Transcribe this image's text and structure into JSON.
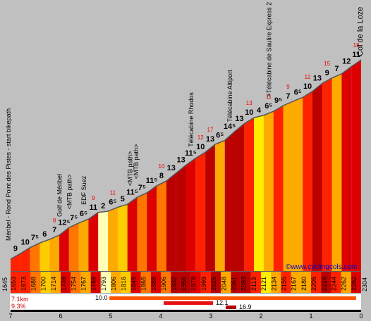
{
  "chart_data": {
    "type": "area",
    "title": "Col de la Loze",
    "credit": "©www.cyclingcols.com",
    "x_unit": "km remaining",
    "x_ticks": [
      "7",
      "6",
      "5",
      "4",
      "3",
      "2",
      "1",
      "0"
    ],
    "start_altitude": "1645",
    "end_altitude": "2304",
    "altitudes": [
      "1653",
      "1673",
      "1688",
      "1700",
      "1714",
      "1739",
      "1754",
      "1767",
      "1789",
      "1793",
      "1806",
      "1816",
      "1849",
      "1865",
      "1888",
      "1906",
      "1932",
      "1956",
      "1979",
      "1999",
      "2025",
      "2048",
      "2061",
      "2093",
      "2113",
      "2121",
      "2134",
      "2155",
      "2167",
      "2180",
      "2206",
      "2226",
      "2244",
      "2262",
      "2282"
    ],
    "segments": [
      {
        "km": 0.2,
        "gradient": 9,
        "label": "9"
      },
      {
        "km": 0.2,
        "gradient": 10,
        "label": "10"
      },
      {
        "km": 0.2,
        "gradient": 7.5,
        "label": "7⁵"
      },
      {
        "km": 0.2,
        "gradient": 6,
        "label": "6"
      },
      {
        "km": 0.2,
        "gradient": 7,
        "label": "7",
        "max": "8"
      },
      {
        "km": 0.2,
        "gradient": 12.5,
        "label": "12⁵"
      },
      {
        "km": 0.2,
        "gradient": 7.5,
        "label": "7⁵"
      },
      {
        "km": 0.2,
        "gradient": 6.5,
        "label": "6⁵"
      },
      {
        "km": 0.2,
        "gradient": 11,
        "label": "11",
        "max": "9"
      },
      {
        "km": 0.2,
        "gradient": 2,
        "label": "2"
      },
      {
        "km": 0.2,
        "gradient": 6.5,
        "label": "6⁵",
        "max": "11"
      },
      {
        "km": 0.2,
        "gradient": 5,
        "label": "5"
      },
      {
        "km": 0.2,
        "gradient": 11.5,
        "label": "11⁵"
      },
      {
        "km": 0.2,
        "gradient": 7.5,
        "label": "7⁵"
      },
      {
        "km": 0.2,
        "gradient": 11.5,
        "label": "11⁵"
      },
      {
        "km": 0.2,
        "gradient": 8,
        "label": "8",
        "max": "10"
      },
      {
        "km": 0.2,
        "gradient": 13,
        "label": "13"
      },
      {
        "km": 0.2,
        "gradient": 13,
        "label": "13"
      },
      {
        "km": 0.2,
        "gradient": 11.5,
        "label": "11⁵"
      },
      {
        "km": 0.2,
        "gradient": 10,
        "label": "10",
        "max": "12"
      },
      {
        "km": 0.2,
        "gradient": 13,
        "label": "13",
        "max": "17"
      },
      {
        "km": 0.2,
        "gradient": 6.5,
        "label": "6⁵"
      },
      {
        "km": 0.2,
        "gradient": 14.5,
        "label": "14⁵"
      },
      {
        "km": 0.2,
        "gradient": 13,
        "label": "13"
      },
      {
        "km": 0.2,
        "gradient": 10,
        "label": "10",
        "max": "13"
      },
      {
        "km": 0.2,
        "gradient": 4,
        "label": "4"
      },
      {
        "km": 0.2,
        "gradient": 6.5,
        "label": "6⁵",
        "max": "11"
      },
      {
        "km": 0.2,
        "gradient": 9.5,
        "label": "9⁵"
      },
      {
        "km": 0.2,
        "gradient": 7,
        "label": "7",
        "max": "9"
      },
      {
        "km": 0.2,
        "gradient": 6.5,
        "label": "6⁵"
      },
      {
        "km": 0.2,
        "gradient": 10,
        "label": "10",
        "max": "12"
      },
      {
        "km": 0.2,
        "gradient": 13,
        "label": "13"
      },
      {
        "km": 0.2,
        "gradient": 9,
        "label": "9",
        "max": "15"
      },
      {
        "km": 0.2,
        "gradient": 7,
        "label": "7"
      },
      {
        "km": 0.2,
        "gradient": 12,
        "label": "12"
      },
      {
        "km": 0.2,
        "gradient": 11,
        "label": "11",
        "max": "18"
      }
    ],
    "annotations": [
      {
        "text": "Méribel - Rond Point des Pistes - start bikepath",
        "km_from_start": 0.0
      },
      {
        "text": "Golf de Méribel",
        "km_from_start": 1.05
      },
      {
        "text": "<MTB path>",
        "km_from_start": 1.25
      },
      {
        "text": "EDF Suez",
        "km_from_start": 1.55
      },
      {
        "text": "<MTB path>",
        "km_from_start": 2.5
      },
      {
        "text": "<MTB path>",
        "km_from_start": 2.62
      },
      {
        "text": "Télécabine Rhodos",
        "km_from_start": 3.75
      },
      {
        "text": "Télécabine Altiport",
        "km_from_start": 4.55
      },
      {
        "text": ">Télécabine de Saulire Express 2",
        "km_from_start": 5.35
      }
    ],
    "legend": {
      "distance": "7.1km",
      "avg_gradient": "9.3%",
      "bars": [
        {
          "value": "10.0",
          "color": "#ff5500"
        },
        {
          "value": "12.1",
          "color": "#e81010"
        },
        {
          "value": "16.9",
          "color": "#b00000"
        }
      ]
    }
  }
}
